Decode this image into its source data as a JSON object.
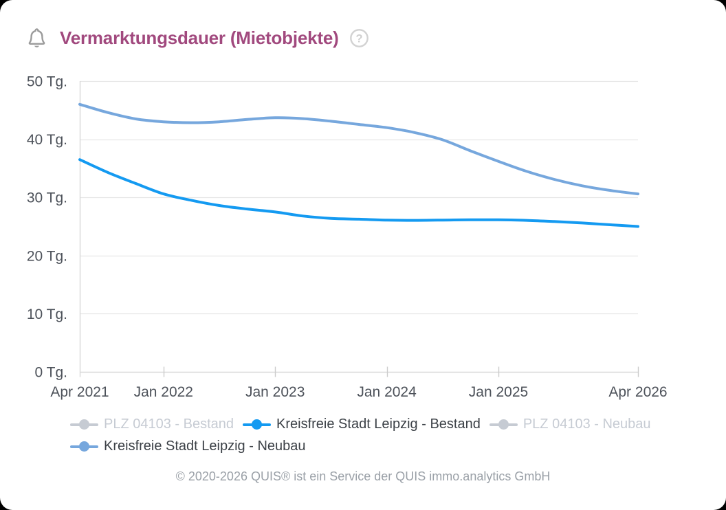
{
  "page": {
    "title": "Vermarktungsdauer (Mietobjekte)",
    "help_glyph": "?",
    "footer": "© 2020-2026 QUIS® ist ein Service der QUIS immo.analytics GmbH"
  },
  "colors": {
    "title": "#a1497e",
    "icon_grey": "#9b9b9b",
    "help_grey": "#d2d2d2",
    "axis_label": "#4d525a",
    "grid_line": "#e6e6e6",
    "axis_line": "#d8d8d8",
    "tick": "#cccccc",
    "legend_active_text": "#3b4046",
    "legend_disabled": "#c6cbd3",
    "footer_text": "#9aa0a7",
    "series_bestand_blue": "#149af1",
    "series_neubau_blue": "#76a7dd"
  },
  "chart_data": {
    "type": "line",
    "title": "Vermarktungsdauer (Mietobjekte)",
    "xlabel": "",
    "ylabel": "Tg.",
    "ylim": [
      0,
      50
    ],
    "grid": true,
    "legend_position": "bottom",
    "yticks": [
      {
        "value": 0,
        "label": "0 Tg."
      },
      {
        "value": 10,
        "label": "10 Tg."
      },
      {
        "value": 20,
        "label": "20 Tg."
      },
      {
        "value": 30,
        "label": "30 Tg."
      },
      {
        "value": 40,
        "label": "40 Tg."
      },
      {
        "value": 50,
        "label": "50 Tg."
      }
    ],
    "xticks": [
      {
        "month": 0,
        "label": "Apr 2021",
        "tick": false
      },
      {
        "month": 9,
        "label": "Jan 2022",
        "tick": true
      },
      {
        "month": 21,
        "label": "Jan 2023",
        "tick": true
      },
      {
        "month": 33,
        "label": "Jan 2024",
        "tick": true
      },
      {
        "month": 45,
        "label": "Jan 2025",
        "tick": true
      },
      {
        "month": 60,
        "label": "Apr 2026",
        "tick": true
      }
    ],
    "x_months_since_apr_2021": [
      0,
      3,
      6,
      9,
      12,
      15,
      18,
      21,
      24,
      27,
      30,
      33,
      36,
      39,
      42,
      45,
      48,
      51,
      54,
      57,
      60
    ],
    "x_range_labels": [
      "Apr 2021",
      "Apr 2026"
    ],
    "series": [
      {
        "name": "PLZ 04103 - Bestand",
        "visible": false,
        "color": "#c6cbd3",
        "values": null
      },
      {
        "name": "Kreisfreie Stadt Leipzig - Bestand",
        "visible": true,
        "color": "#149af1",
        "values": [
          36.5,
          34.3,
          32.4,
          30.6,
          29.5,
          28.6,
          28.0,
          27.5,
          26.8,
          26.4,
          26.25,
          26.1,
          26.05,
          26.1,
          26.15,
          26.15,
          26.05,
          25.85,
          25.6,
          25.3,
          25.0
        ]
      },
      {
        "name": "PLZ 04103 - Neubau",
        "visible": false,
        "color": "#c6cbd3",
        "values": null
      },
      {
        "name": "Kreisfreie Stadt Leipzig - Neubau",
        "visible": true,
        "color": "#76a7dd",
        "values": [
          46.0,
          44.6,
          43.5,
          43.0,
          42.85,
          43.0,
          43.4,
          43.7,
          43.55,
          43.1,
          42.55,
          42.0,
          41.15,
          39.9,
          38.0,
          36.2,
          34.5,
          33.1,
          32.0,
          31.2,
          30.6
        ]
      }
    ]
  }
}
